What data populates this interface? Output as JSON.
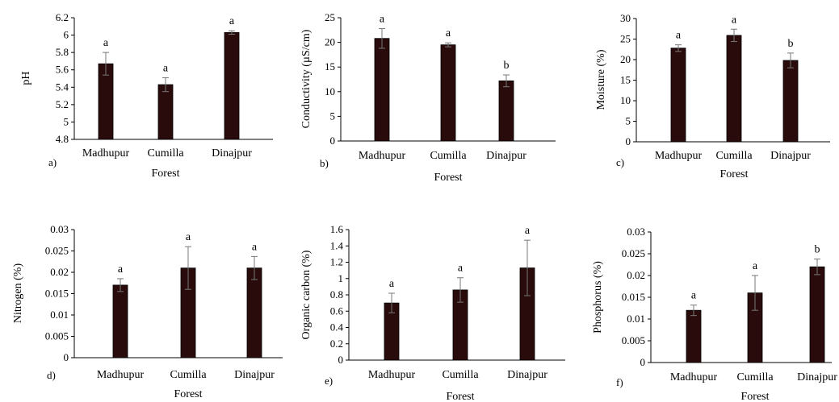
{
  "colors": {
    "bar": "#2a0b0b",
    "bar_edge": "#000000",
    "axis": "#000000",
    "error_bar": "#777777"
  },
  "chart_data": [
    {
      "type": "bar",
      "panel_label": "a)",
      "categories": [
        "Madhupur",
        "Cumilla",
        "Dinajpur"
      ],
      "values": [
        5.67,
        5.43,
        6.03
      ],
      "errors": [
        0.13,
        0.08,
        0.02
      ],
      "significance": [
        "a",
        "a",
        "a"
      ],
      "ylabel": "pH",
      "xlabel": "Forest",
      "ylim": [
        4.8,
        6.2
      ],
      "yticks": [
        "6.2",
        "6",
        "5.8",
        "5.6",
        "5.4",
        "5.2",
        "5",
        "4.8"
      ]
    },
    {
      "type": "bar",
      "panel_label": "b)",
      "categories": [
        "Madhupur",
        "Cumilla",
        "Dinajpur"
      ],
      "values": [
        20.8,
        19.5,
        12.2
      ],
      "errors": [
        2.0,
        0.4,
        1.2
      ],
      "significance": [
        "a",
        "a",
        "b"
      ],
      "ylabel": "Conductivity (µS/cm)",
      "xlabel": "Forest",
      "ylim": [
        0,
        25
      ],
      "yticks": [
        "25",
        "20",
        "15",
        "10",
        "5",
        "0"
      ]
    },
    {
      "type": "bar",
      "panel_label": "c)",
      "categories": [
        "Madhupur",
        "Cumilla",
        "Dinajpur"
      ],
      "values": [
        22.8,
        25.9,
        19.8
      ],
      "errors": [
        0.8,
        1.5,
        1.8
      ],
      "significance": [
        "a",
        "a",
        "b"
      ],
      "ylabel": "Moisture (%)",
      "xlabel": "Forest",
      "ylim": [
        0,
        30
      ],
      "yticks": [
        "30",
        "25",
        "20",
        "15",
        "10",
        "5",
        "0"
      ]
    },
    {
      "type": "bar",
      "panel_label": "d)",
      "categories": [
        "Madhupur",
        "Cumilla",
        "Dinajpur"
      ],
      "values": [
        0.017,
        0.021,
        0.021
      ],
      "errors": [
        0.0015,
        0.005,
        0.0027
      ],
      "significance": [
        "a",
        "a",
        "a"
      ],
      "ylabel": "Nitrogen (%)",
      "xlabel": "Forest",
      "ylim": [
        0,
        0.03
      ],
      "yticks": [
        "0.03",
        "0.025",
        "0.02",
        "0.015",
        "0.01",
        "0.005",
        "0"
      ]
    },
    {
      "type": "bar",
      "panel_label": "e)",
      "categories": [
        "Madhupur",
        "Cumilla",
        "Dinajpur"
      ],
      "values": [
        0.7,
        0.86,
        1.13
      ],
      "errors": [
        0.12,
        0.15,
        0.34
      ],
      "significance": [
        "a",
        "a",
        "a"
      ],
      "ylabel": "Organic carbon (%)",
      "xlabel": "Forest",
      "ylim": [
        0,
        1.6
      ],
      "yticks": [
        "1.6",
        "1.4",
        "1.2",
        "1",
        "0.8",
        "0.6",
        "0.4",
        "0.2",
        "0"
      ]
    },
    {
      "type": "bar",
      "panel_label": "f)",
      "categories": [
        "Madhupur",
        "Cumilla",
        "Dinajpur"
      ],
      "values": [
        0.012,
        0.016,
        0.022
      ],
      "errors": [
        0.0012,
        0.004,
        0.0018
      ],
      "significance": [
        "a",
        "a",
        "b"
      ],
      "ylabel": "Phosphorus (%)",
      "xlabel": "Forest",
      "ylim": [
        0,
        0.03
      ],
      "yticks": [
        "0.03",
        "0.025",
        "0.02",
        "0.015",
        "0.01",
        "0.005",
        "0"
      ]
    }
  ]
}
